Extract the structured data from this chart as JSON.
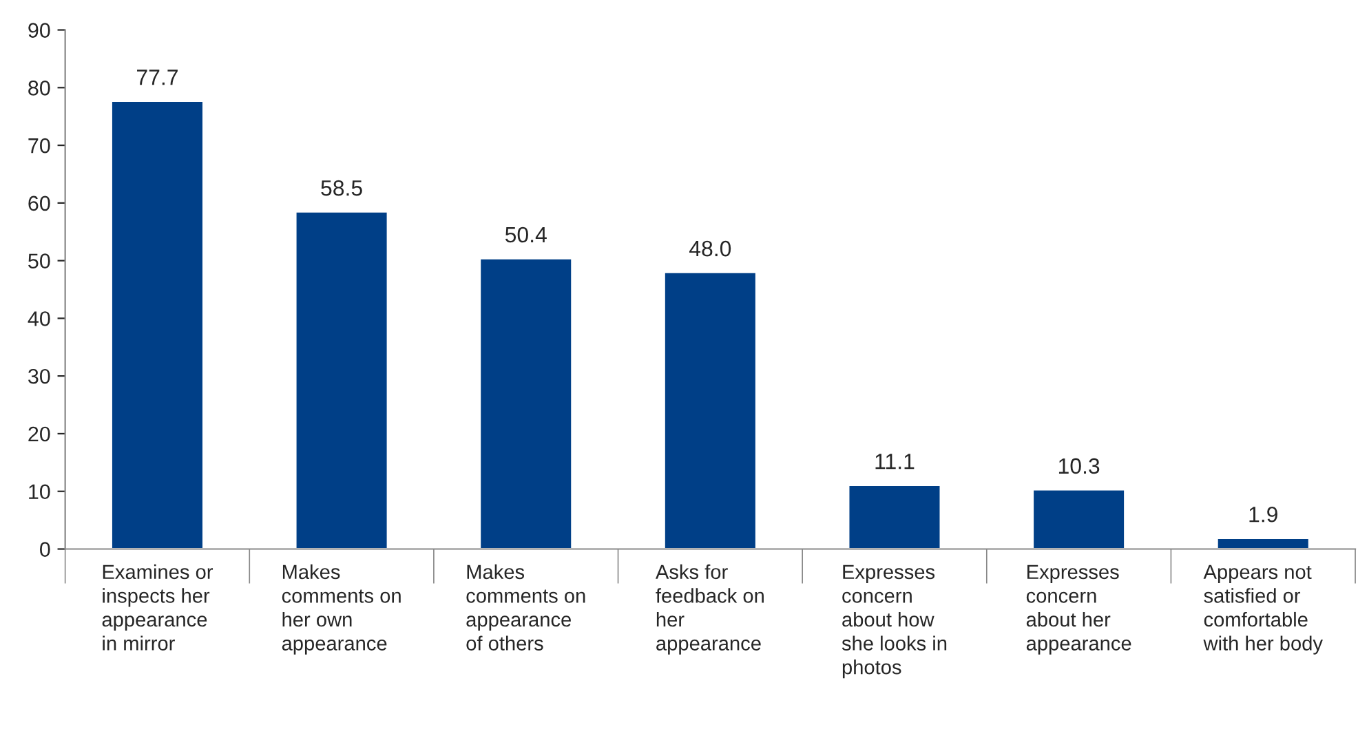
{
  "chart_data": {
    "type": "bar",
    "categories": [
      "Examines or\ninspects her\nappearance\nin mirror",
      "Makes\ncomments on\nher own\nappearance",
      "Makes\ncomments on\nappearance\nof others",
      "Asks for\nfeedback on\nher\nappearance",
      "Expresses\nconcern\nabout how\nshe looks in\nphotos",
      "Expresses\nconcern\nabout her\nappearance",
      "Appears not\nsatisfied or\ncomfortable\nwith her body"
    ],
    "values": [
      77.7,
      58.5,
      50.4,
      48.0,
      11.1,
      10.3,
      1.9
    ],
    "value_labels": [
      "77.7",
      "58.5",
      "50.4",
      "48.0",
      "11.1",
      "10.3",
      "1.9"
    ],
    "color": "#003f87",
    "ylim": [
      0,
      90
    ],
    "yticks": [
      0,
      10,
      20,
      30,
      40,
      50,
      60,
      70,
      80,
      90
    ],
    "grid": false,
    "legend": false
  }
}
